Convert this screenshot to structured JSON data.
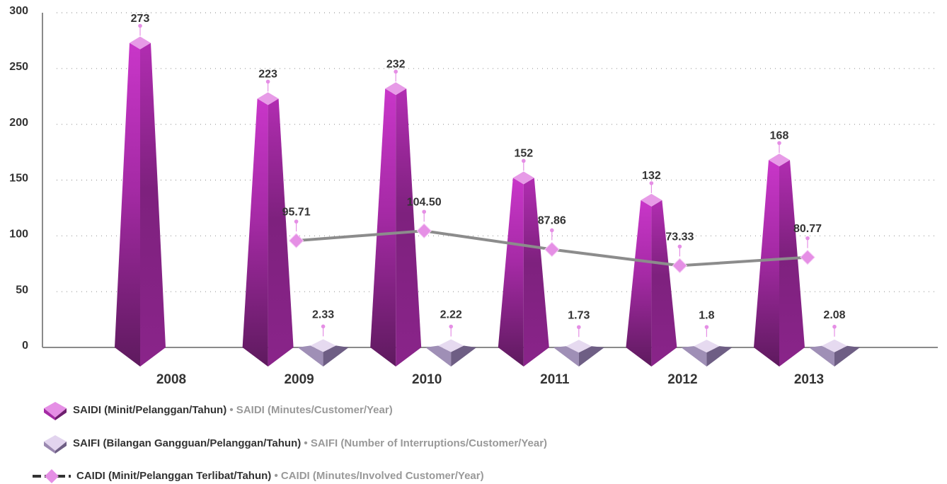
{
  "chart_data": {
    "type": "bar-line",
    "categories": [
      "2008",
      "2009",
      "2010",
      "2011",
      "2012",
      "2013"
    ],
    "ylim": [
      0,
      300
    ],
    "yticks": [
      0,
      50,
      100,
      150,
      200,
      250,
      300
    ],
    "grid": true,
    "series": [
      {
        "name": "SAIDI (Minit/Pelanggan/Tahun)",
        "name_en": "• SAIDI (Minutes/Customer/Year)",
        "kind": "bar",
        "color": "#b52db5",
        "values": [
          273,
          223,
          232,
          152,
          132,
          168
        ]
      },
      {
        "name": "SAIFI (Bilangan Gangguan/Pelanggan/Tahun)",
        "name_en": "• SAIFI (Number of Interruptions/Customer/Year)",
        "kind": "bar",
        "color": "#9a88b0",
        "values": [
          null,
          2.33,
          2.22,
          1.73,
          1.8,
          2.08
        ]
      },
      {
        "name": "CAIDI (Minit/Pelanggan Terlibat/Tahun)",
        "name_en": "• CAIDI (Minutes/Involved Customer/Year)",
        "kind": "line",
        "color": "#8c8c8c",
        "values": [
          null,
          95.71,
          104.5,
          87.86,
          73.33,
          80.77
        ],
        "value_labels": [
          null,
          "95.71",
          "104.50",
          "87.86",
          "73.33",
          "80.77"
        ]
      }
    ]
  }
}
